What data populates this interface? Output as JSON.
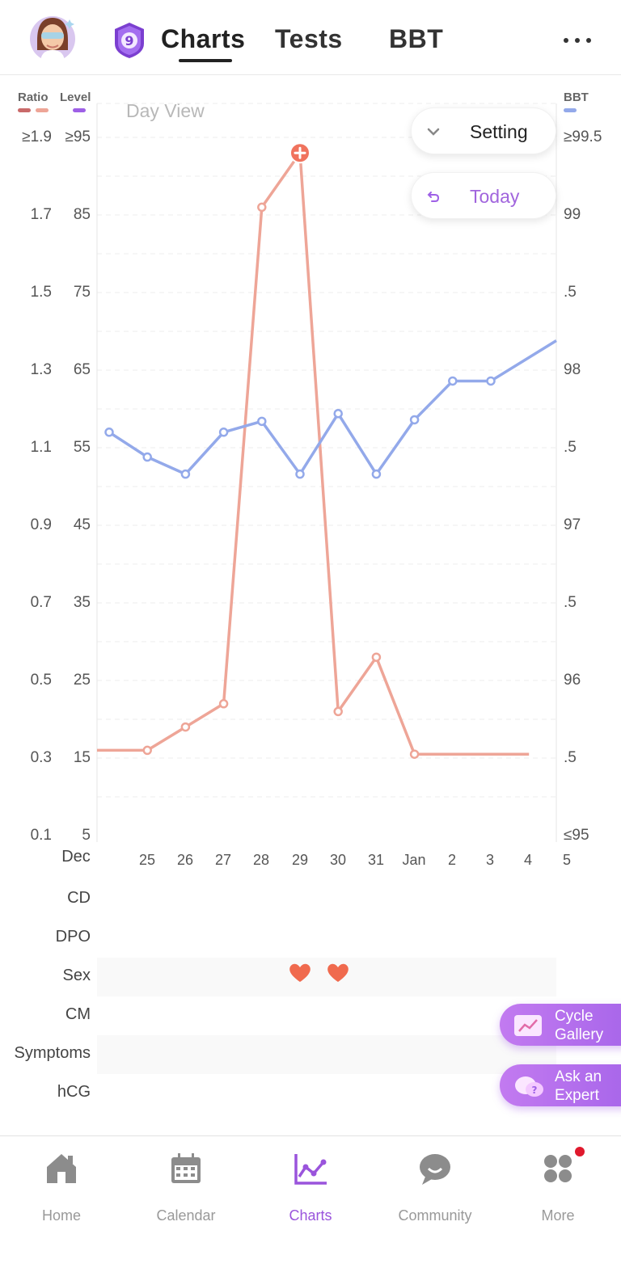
{
  "header": {
    "tabs": [
      {
        "label": "Charts",
        "active": true
      },
      {
        "label": "Tests",
        "active": false
      },
      {
        "label": "BBT",
        "active": false
      }
    ],
    "badge_number": "9"
  },
  "legend": {
    "ratio_label": "Ratio",
    "level_label": "Level",
    "bbt_label": "BBT",
    "ratio_colors": [
      "#c96a6a",
      "#eea597"
    ],
    "level_color": "#9e60e6",
    "bbt_color": "#93a9ea"
  },
  "view_label": "Day View",
  "buttons": {
    "setting": "Setting",
    "today": "Today",
    "cycle_gallery_line1": "Cycle",
    "cycle_gallery_line2": "Gallery",
    "ask_expert_line1": "Ask an",
    "ask_expert_line2": "Expert"
  },
  "axes": {
    "ratio": [
      "≥1.9",
      "1.7",
      "1.5",
      "1.3",
      "1.1",
      "0.9",
      "0.7",
      "0.5",
      "0.3",
      "0.1"
    ],
    "level": [
      "≥95",
      "85",
      "75",
      "65",
      "55",
      "45",
      "35",
      "25",
      "15",
      "5"
    ],
    "bbt": [
      "≥99.5",
      "99",
      ".5",
      "98",
      ".5",
      "97",
      ".5",
      "96",
      ".5",
      "≤95"
    ]
  },
  "chart_data": {
    "type": "line",
    "x_month_label": "Dec",
    "x": [
      "25",
      "26",
      "27",
      "28",
      "29",
      "30",
      "31",
      "Jan",
      "2",
      "3",
      "4",
      "5"
    ],
    "ratio_axis": {
      "min": 0.1,
      "max": 1.9
    },
    "level_axis": {
      "min": 5,
      "max": 95
    },
    "bbt_axis": {
      "min": 95,
      "max": 99.5
    },
    "series": [
      {
        "axis": "ratio",
        "color": "#eea597",
        "values": [
          0.32,
          0.32,
          0.38,
          0.44,
          1.72,
          1.86,
          0.42,
          0.56,
          0.31,
          0.31,
          0.31,
          0.31
        ],
        "peak_index": 5
      },
      {
        "axis": "bbt",
        "color": "#93a9ea",
        "values": [
          97.6,
          97.44,
          97.33,
          97.6,
          97.67,
          97.33,
          97.72,
          97.33,
          97.68,
          97.93,
          97.93,
          98.19
        ],
        "visible_markers": [
          0,
          1,
          2,
          3,
          4,
          5,
          6,
          7,
          8,
          9,
          10,
          11
        ]
      }
    ],
    "ratio_hidden_first_marker": true
  },
  "rows": {
    "labels": [
      "CD",
      "DPO",
      "Sex",
      "CM",
      "Symptoms",
      "hCG"
    ],
    "sex_days": [
      "29",
      "30"
    ]
  },
  "nav": [
    {
      "label": "Home",
      "icon": "home-icon",
      "active": false
    },
    {
      "label": "Calendar",
      "icon": "calendar-icon",
      "active": false
    },
    {
      "label": "Charts",
      "icon": "charts-icon",
      "active": true
    },
    {
      "label": "Community",
      "icon": "community-icon",
      "active": false
    },
    {
      "label": "More",
      "icon": "more-grid-icon",
      "active": false,
      "notification": true
    }
  ]
}
